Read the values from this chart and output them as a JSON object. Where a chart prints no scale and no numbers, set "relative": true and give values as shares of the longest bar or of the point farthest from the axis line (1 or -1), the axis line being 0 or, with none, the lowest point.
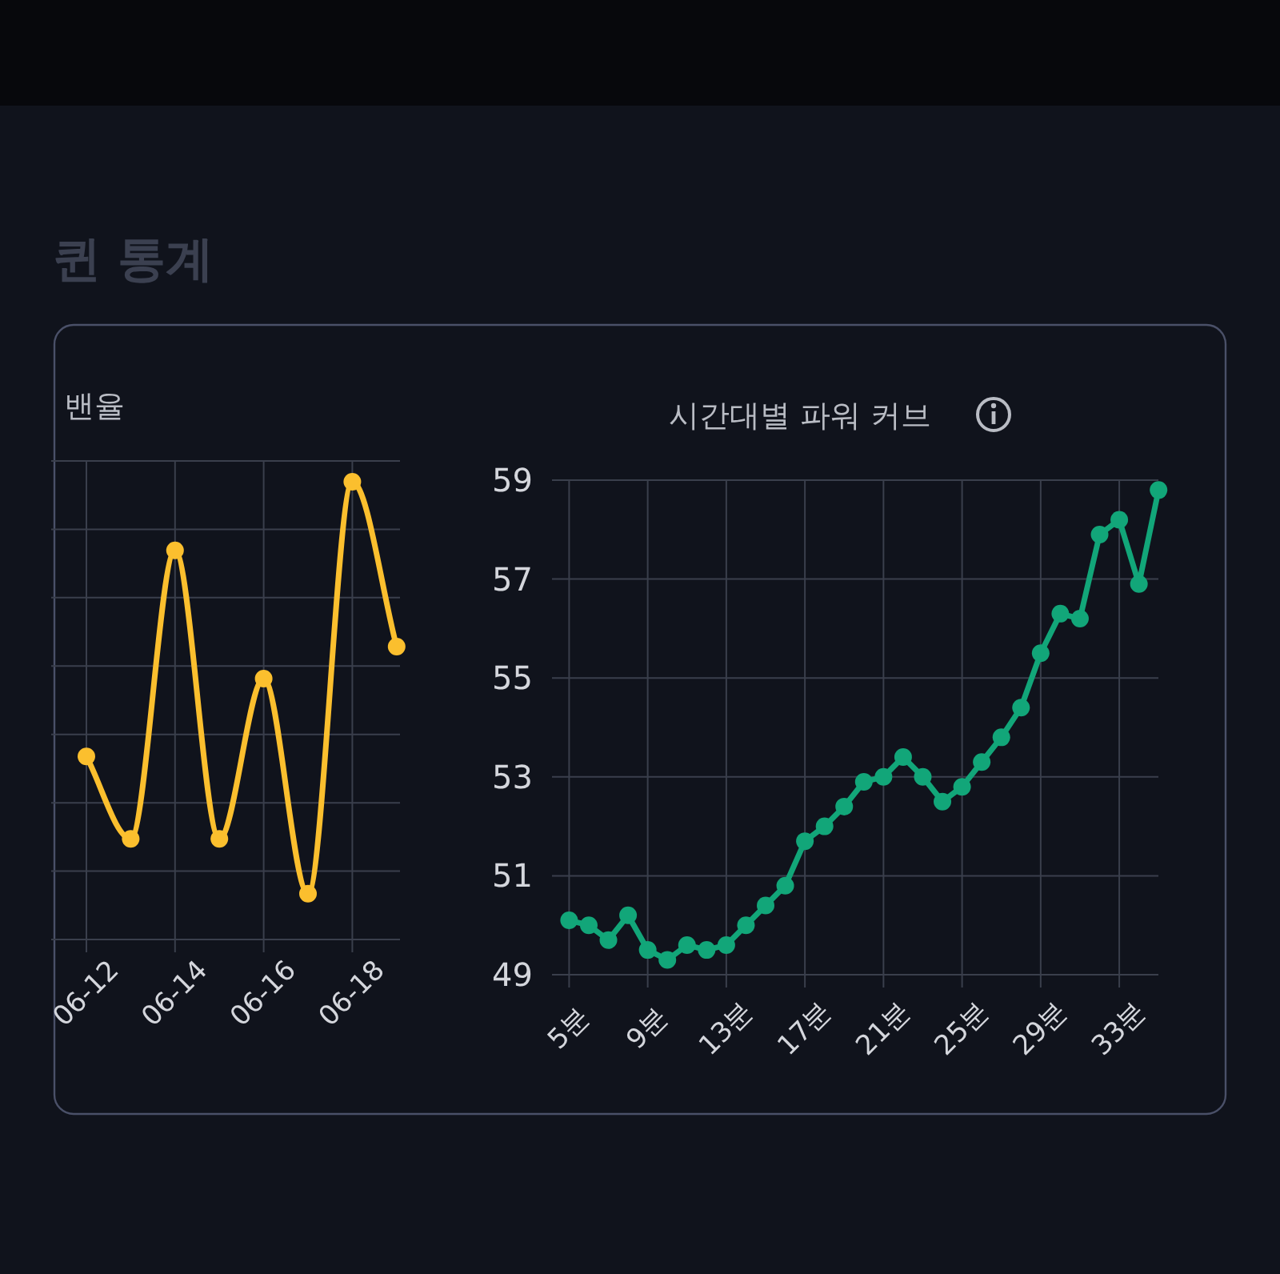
{
  "chart_data": [
    {
      "type": "line",
      "title": "밴율",
      "annotations": [
        "퀸 통계"
      ],
      "categories": [
        "06-12",
        null,
        "06-14",
        null,
        "06-16",
        null,
        "06-18",
        null
      ],
      "relative": true,
      "grid": true,
      "marker": "circle",
      "series": [
        {
          "color": "#fbbf2e",
          "values": [
            0.4,
            0.22,
            0.85,
            0.22,
            0.57,
            0.1,
            1,
            0.64
          ]
        }
      ]
    },
    {
      "type": "line",
      "title": "시간대별 파워 커브",
      "categories": [
        "5분",
        null,
        null,
        null,
        "9분",
        null,
        null,
        null,
        "13분",
        null,
        null,
        null,
        "17분",
        null,
        null,
        null,
        "21분",
        null,
        null,
        null,
        "25분",
        null,
        null,
        null,
        "29분",
        null,
        null,
        null,
        "33분",
        null,
        null
      ],
      "ylim": [
        49,
        59
      ],
      "yticks": [
        49,
        51,
        53,
        55,
        57,
        59
      ],
      "grid": true,
      "marker": "circle",
      "series": [
        {
          "color": "#12a679",
          "values": [
            50.1,
            50.0,
            49.7,
            50.2,
            49.5,
            49.3,
            49.6,
            49.5,
            49.6,
            50.0,
            50.4,
            50.8,
            51.7,
            52.0,
            52.4,
            52.9,
            53.0,
            53.4,
            53.0,
            52.5,
            52.8,
            53.3,
            53.8,
            54.4,
            55.5,
            56.3,
            56.2,
            57.9,
            58.2,
            56.9,
            58.8
          ]
        }
      ]
    }
  ]
}
